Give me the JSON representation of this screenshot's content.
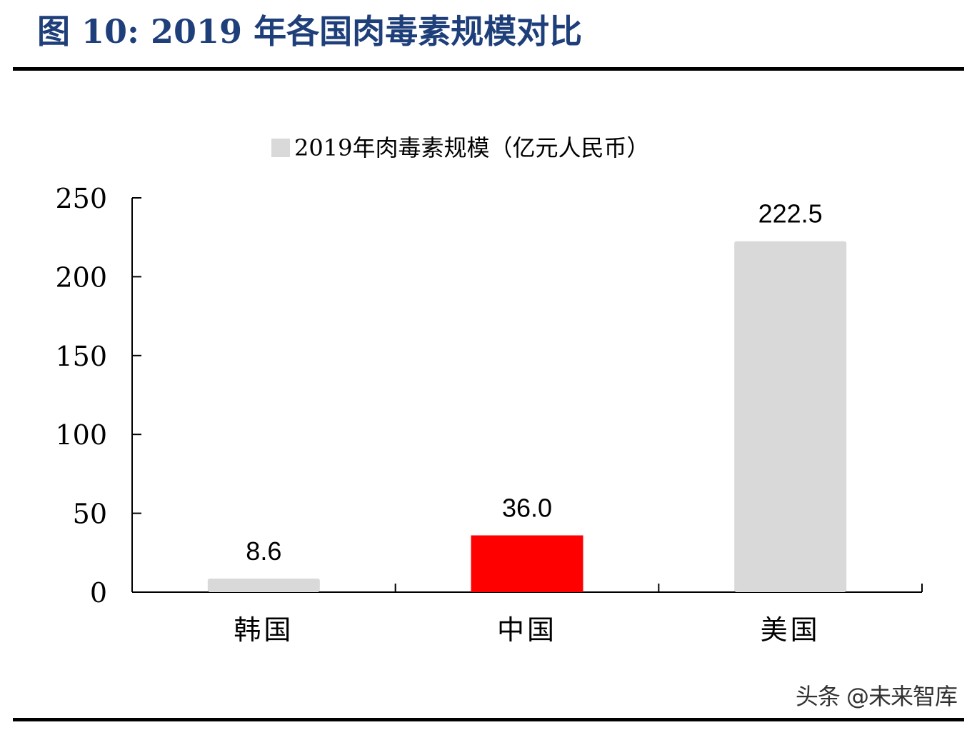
{
  "figure": {
    "title": "图 10:  2019 年各国肉毒素规模对比",
    "watermark": "头条 @未来智库"
  },
  "colors": {
    "title": "#1f3f7a",
    "bar_default": "#d9d9d9",
    "bar_highlight": "#ff0000",
    "axis": "#000000"
  },
  "chart_data": {
    "type": "bar",
    "categories": [
      "韩国",
      "中国",
      "美国"
    ],
    "series": [
      {
        "name": "2019年肉毒素规模（亿元人民币）",
        "values": [
          8.6,
          36.0,
          222.5
        ],
        "data_labels": [
          "8.6",
          "36.0",
          "222.5"
        ],
        "bar_colors": [
          "#d9d9d9",
          "#ff0000",
          "#d9d9d9"
        ]
      }
    ],
    "ylim": [
      0,
      250
    ],
    "yticks": [
      "0",
      "50",
      "100",
      "150",
      "200",
      "250"
    ],
    "legend_label": "2019年肉毒素规模（亿元人民币）",
    "legend_position": "top-center",
    "grid": false
  }
}
